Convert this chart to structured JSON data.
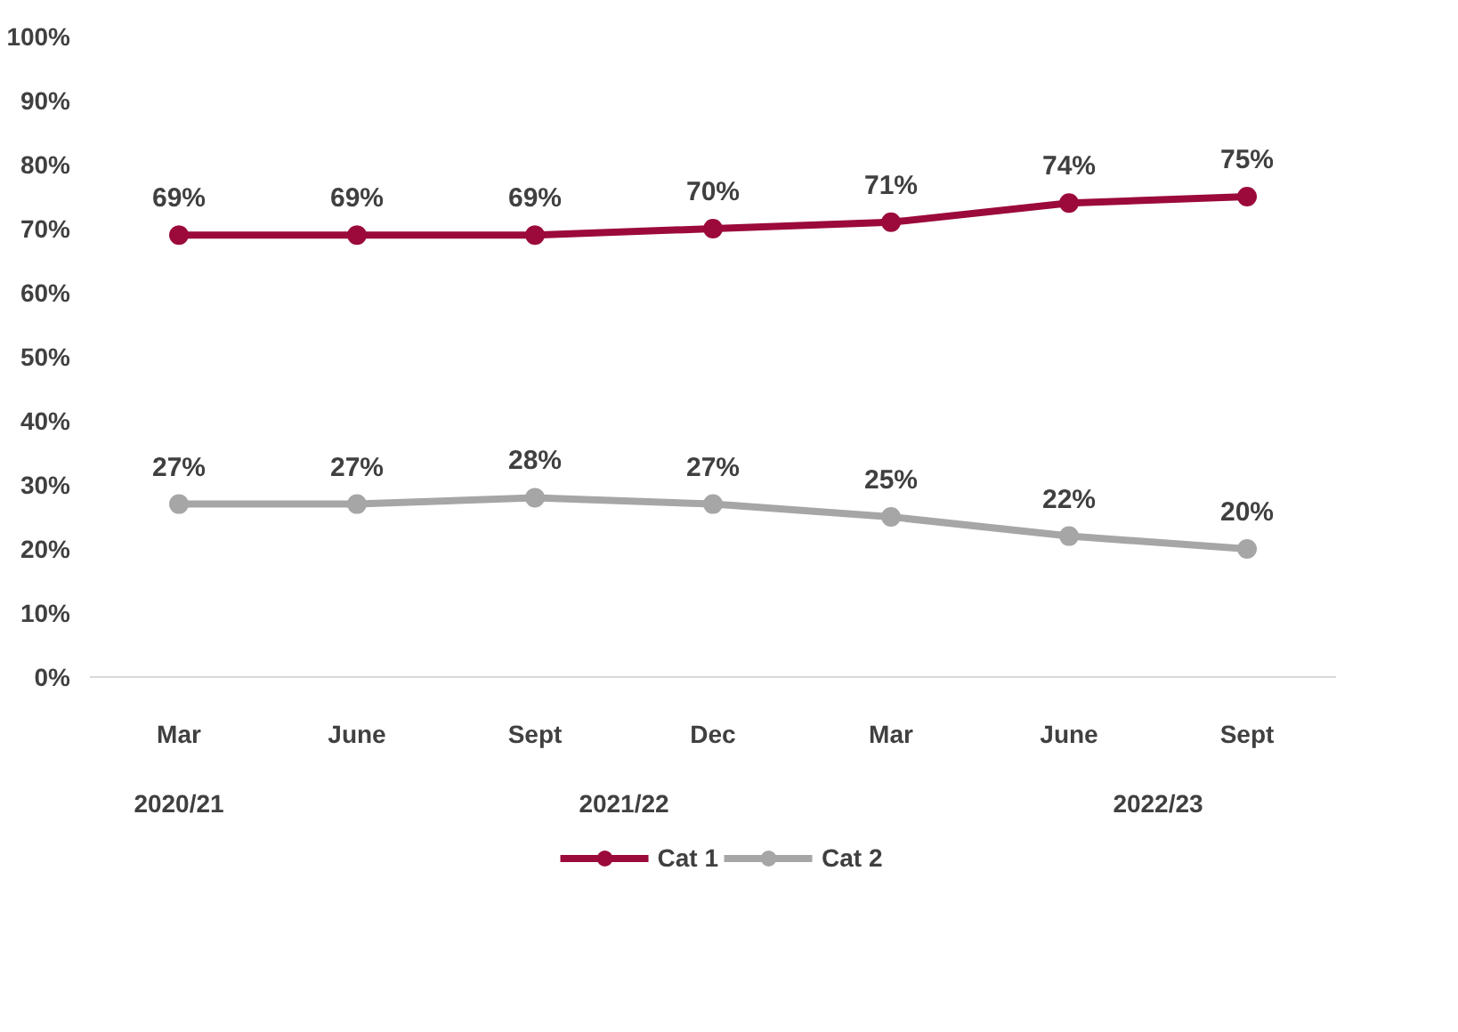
{
  "chart_data": {
    "type": "line",
    "categories": [
      "Mar",
      "June",
      "Sept",
      "Dec",
      "Mar",
      "June",
      "Sept"
    ],
    "series": [
      {
        "name": "Cat 1",
        "color": "#9b0a3a",
        "values": [
          69,
          69,
          69,
          70,
          71,
          74,
          75
        ],
        "value_labels": [
          "69%",
          "69%",
          "69%",
          "70%",
          "71%",
          "74%",
          "75%"
        ]
      },
      {
        "name": "Cat 2",
        "color": "#a6a6a6",
        "values": [
          27,
          27,
          28,
          27,
          25,
          22,
          20
        ],
        "value_labels": [
          "27%",
          "27%",
          "28%",
          "27%",
          "25%",
          "22%",
          "20%"
        ]
      }
    ],
    "ylim": [
      0,
      100
    ],
    "yticks": [
      {
        "value": 0,
        "label": "0%"
      },
      {
        "value": 10,
        "label": "10%"
      },
      {
        "value": 20,
        "label": "20%"
      },
      {
        "value": 30,
        "label": "30%"
      },
      {
        "value": 40,
        "label": "40%"
      },
      {
        "value": 50,
        "label": "50%"
      },
      {
        "value": 60,
        "label": "60%"
      },
      {
        "value": 70,
        "label": "70%"
      },
      {
        "value": 80,
        "label": "80%"
      },
      {
        "value": 90,
        "label": "90%"
      },
      {
        "value": 100,
        "label": "100%"
      }
    ],
    "annotations": [
      "2020/21",
      "2021/22",
      "2022/23"
    ],
    "grid": false,
    "legend": "bottom",
    "marker": "circle",
    "line_style": "solid"
  }
}
